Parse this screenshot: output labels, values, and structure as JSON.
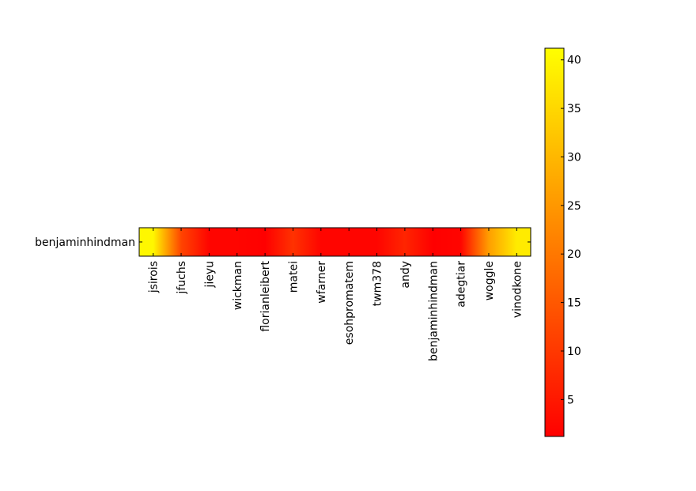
{
  "chart_data": {
    "type": "heatmap",
    "title": "",
    "xlabel": "",
    "ylabel": "",
    "rows": [
      "benjaminhindman"
    ],
    "columns": [
      "jsirois",
      "jfuchs",
      "jieyu",
      "wickman",
      "florianleibert",
      "matei",
      "wfarner",
      "esohpromatem",
      "twm378",
      "andy",
      "benjaminhindman",
      "adegtiar",
      "woggle",
      "vinodkone"
    ],
    "values": [
      [
        40,
        12,
        2,
        2,
        1,
        9,
        2,
        2,
        2,
        7,
        1,
        2,
        26,
        38
      ]
    ],
    "colorbar": {
      "range": [
        1.2,
        41.2
      ],
      "ticks": [
        5,
        10,
        15,
        20,
        25,
        30,
        35,
        40
      ],
      "tick_labels": [
        "5",
        "10",
        "15",
        "20",
        "25",
        "30",
        "35",
        "40"
      ],
      "colormap": "autumn",
      "low_color": "#ff0000",
      "high_color": "#ffff00"
    }
  }
}
